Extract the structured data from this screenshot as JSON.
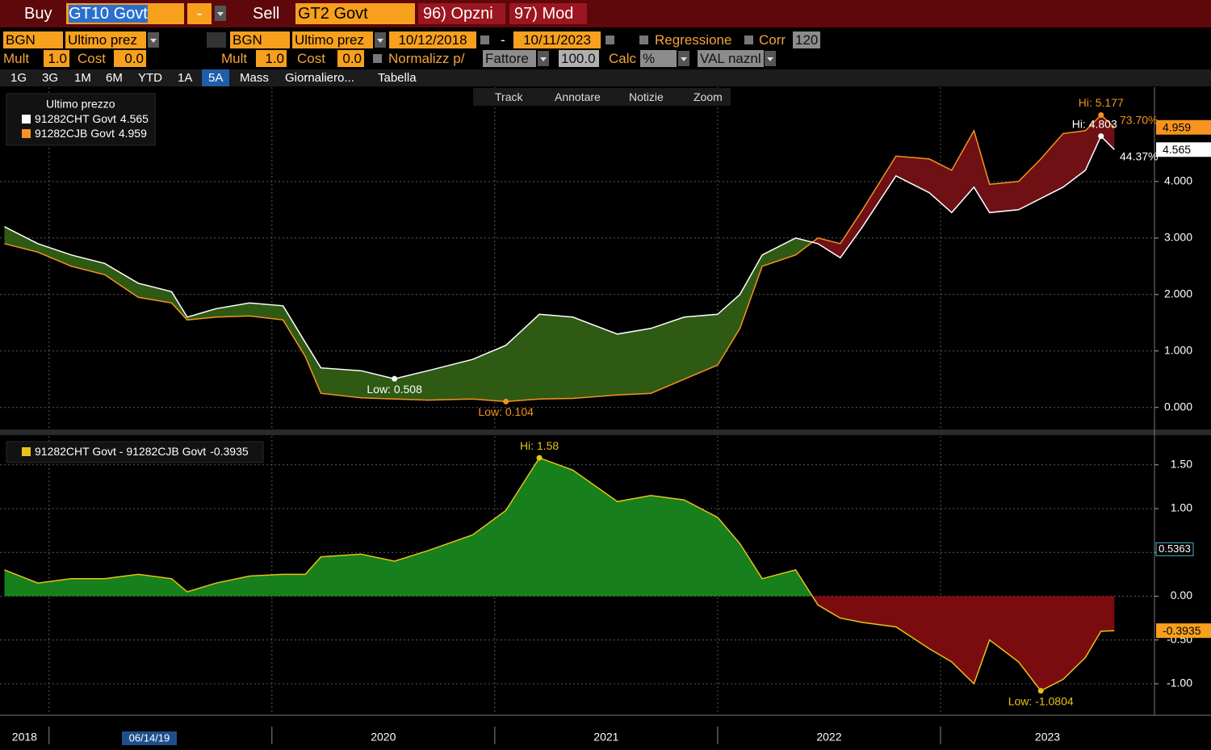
{
  "toolbar": {
    "buy": "Buy",
    "buy_ticker": "GT10 Govt",
    "dash": "-",
    "sell": "Sell",
    "sell_ticker": "GT2 Govt",
    "options": "96) Opzni",
    "mod": "97) Mod"
  },
  "settings": {
    "source1": "BGN",
    "field1": "Ultimo prez",
    "source2": "BGN",
    "field2": "Ultimo prez",
    "start_date": "10/12/2018",
    "date_sep": "-",
    "end_date": "10/11/2023",
    "regression": "Regressione",
    "corr": "Corr",
    "corr_value": "120",
    "mult1": "Mult",
    "mult1_value": "1.0",
    "cost1": "Cost",
    "cost1_value": "0.0",
    "mult2": "Mult",
    "mult2_value": "1.0",
    "cost2": "Cost",
    "cost2_value": "0.0",
    "normalize": "Normalizz p/",
    "factor": "Fattore",
    "factor_value": "100.0",
    "calc": "Calc",
    "calc_value": "%",
    "currency": "VAL naznl"
  },
  "tabs": [
    "1G",
    "3G",
    "1M",
    "6M",
    "YTD",
    "1A",
    "5A",
    "Mass",
    "Giornaliero...",
    "Tabella"
  ],
  "active_tab": 6,
  "chart_tools": [
    "Track",
    "Annotare",
    "Notizie",
    "Zoom"
  ],
  "right_notes": [
    "73.70%",
    "44.37%"
  ],
  "chart_data": [
    {
      "type": "line",
      "legend_title": "Ultimo prezzo",
      "x": [
        2018.8,
        2018.95,
        2019.1,
        2019.25,
        2019.4,
        2019.55,
        2019.62,
        2019.75,
        2019.9,
        2020.05,
        2020.15,
        2020.22,
        2020.4,
        2020.55,
        2020.7,
        2020.9,
        2021.05,
        2021.2,
        2021.35,
        2021.55,
        2021.7,
        2021.85,
        2022.0,
        2022.1,
        2022.2,
        2022.35,
        2022.45,
        2022.55,
        2022.65,
        2022.8,
        2022.95,
        2023.05,
        2023.15,
        2023.22,
        2023.35,
        2023.45,
        2023.55,
        2023.65,
        2023.72,
        2023.78
      ],
      "series": [
        {
          "name": "91282CHT Govt",
          "color": "#ffffff",
          "values": [
            3.2,
            2.9,
            2.7,
            2.55,
            2.2,
            2.05,
            1.6,
            1.75,
            1.85,
            1.8,
            1.15,
            0.7,
            0.65,
            0.508,
            0.65,
            0.85,
            1.1,
            1.65,
            1.6,
            1.3,
            1.4,
            1.6,
            1.65,
            2.0,
            2.7,
            3.0,
            2.9,
            2.65,
            3.2,
            4.1,
            3.8,
            3.45,
            3.9,
            3.45,
            3.5,
            3.7,
            3.9,
            4.2,
            4.803,
            4.565
          ]
        },
        {
          "name": "91282CJB Govt",
          "color": "#f7931e",
          "values": [
            2.9,
            2.75,
            2.5,
            2.35,
            1.95,
            1.85,
            1.55,
            1.6,
            1.62,
            1.55,
            0.9,
            0.25,
            0.17,
            0.15,
            0.13,
            0.15,
            0.104,
            0.15,
            0.16,
            0.22,
            0.25,
            0.5,
            0.75,
            1.4,
            2.5,
            2.7,
            3.0,
            2.9,
            3.5,
            4.45,
            4.4,
            4.2,
            4.9,
            3.95,
            4.0,
            4.4,
            4.85,
            4.9,
            5.177,
            4.959
          ]
        }
      ],
      "fill_colors": {
        "positive": "#2f5a14",
        "negative": "#6e1014"
      },
      "xlim": [
        2018.78,
        2023.96
      ],
      "xticks": [
        2019,
        2020,
        2021,
        2022,
        2023
      ],
      "ylim": [
        -0.39,
        5.67
      ],
      "yticks": [
        {
          "value": 0,
          "label": "0.000"
        },
        {
          "value": 1,
          "label": "1.000"
        },
        {
          "value": 2,
          "label": "2.000"
        },
        {
          "value": 3,
          "label": "3.000"
        },
        {
          "value": 4,
          "label": "4.000"
        }
      ],
      "grid": true,
      "annotations": [
        {
          "label": "Hi: 5.177",
          "value": 5.177,
          "x": 2023.72,
          "color": "#f7931e"
        },
        {
          "label": "Hi: 4.803",
          "value": 4.803,
          "x": 2023.72,
          "color": "#ffffff"
        },
        {
          "label": "Low: 0.508",
          "value": 0.508,
          "x": 2020.55,
          "color": "#ffffff"
        },
        {
          "label": "Low: 0.104",
          "value": 0.104,
          "x": 2021.05,
          "color": "#f7931e"
        }
      ]
    },
    {
      "type": "area",
      "legend": "91282CHT Govt - 91282CJB Govt",
      "x": [
        2018.8,
        2018.95,
        2019.1,
        2019.25,
        2019.4,
        2019.55,
        2019.62,
        2019.75,
        2019.9,
        2020.05,
        2020.15,
        2020.22,
        2020.4,
        2020.55,
        2020.7,
        2020.9,
        2021.05,
        2021.2,
        2021.35,
        2021.55,
        2021.7,
        2021.85,
        2022.0,
        2022.1,
        2022.2,
        2022.35,
        2022.45,
        2022.55,
        2022.65,
        2022.8,
        2022.95,
        2023.05,
        2023.15,
        2023.22,
        2023.35,
        2023.45,
        2023.55,
        2023.65,
        2023.72,
        2023.78
      ],
      "series": [
        {
          "name": "91282CHT Govt - 91282CJB Govt",
          "color": "#e8c21a",
          "values": [
            0.3,
            0.15,
            0.2,
            0.2,
            0.25,
            0.2,
            0.05,
            0.15,
            0.23,
            0.25,
            0.25,
            0.45,
            0.48,
            0.4,
            0.52,
            0.7,
            0.98,
            1.58,
            1.44,
            1.08,
            1.15,
            1.1,
            0.9,
            0.6,
            0.2,
            0.3,
            -0.1,
            -0.25,
            -0.3,
            -0.35,
            -0.6,
            -0.75,
            -1.0,
            -0.5,
            -0.75,
            -1.0804,
            -0.95,
            -0.7,
            -0.4,
            -0.3935
          ]
        }
      ],
      "fill_colors": {
        "positive": "#17801c",
        "negative": "#7a0c10"
      },
      "xlim": [
        2018.78,
        2023.96
      ],
      "xticks": [
        2019,
        2020,
        2021,
        2022,
        2023
      ],
      "x_labels": [
        {
          "value": 2018.89,
          "label": "2018"
        },
        {
          "value": 2020.5,
          "label": "2020"
        },
        {
          "value": 2021.5,
          "label": "2021"
        },
        {
          "value": 2022.5,
          "label": "2022"
        },
        {
          "value": 2023.48,
          "label": "2023"
        }
      ],
      "ylim": [
        -1.36,
        1.83
      ],
      "yticks": [
        {
          "value": -1,
          "label": "-1.00"
        },
        {
          "value": -0.5,
          "label": "-0.50"
        },
        {
          "value": 0,
          "label": "0.00"
        },
        {
          "value": 0.5,
          "label": "0.50"
        },
        {
          "value": 1,
          "label": "1.00"
        },
        {
          "value": 1.5,
          "label": "1.50"
        }
      ],
      "grid": true,
      "cursor": {
        "x": {
          "value": 2019.45,
          "label": "06/14/19"
        },
        "y": 0.5363
      },
      "annotations": [
        {
          "label": "Hi: 1.58",
          "value": 1.58,
          "x": 2021.2,
          "color": "#e8c21a"
        },
        {
          "label": "Low: -1.0804",
          "value": -1.0804,
          "x": 2023.45,
          "color": "#e8c21a"
        }
      ]
    }
  ]
}
